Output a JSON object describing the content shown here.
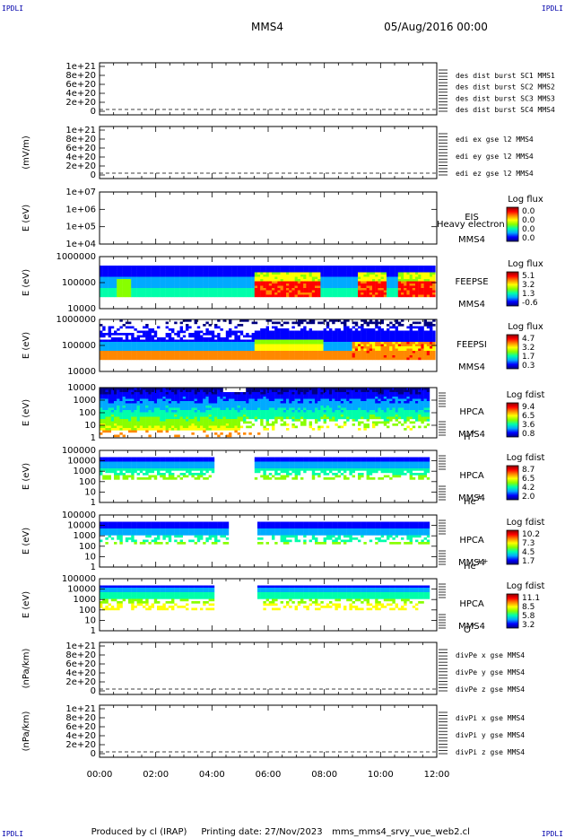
{
  "header": {
    "logo_left": "IPDLI",
    "logo_right": "IPDLI",
    "spacecraft": "MMS4",
    "datetime": "05/Aug/2016 00:00"
  },
  "footer": {
    "produced_by": "Produced by cl (IRAP)",
    "printing_date": "Printing date: 27/Nov/2023",
    "script": "mms_mms4_srvy_vue_web2.cl",
    "logo_left": "IPDLI",
    "logo_right": "IPDLI"
  },
  "colors": {
    "red": "#dd0000",
    "green": "#22bb00",
    "blue": "#0000cc",
    "magenta": "#cc00cc"
  },
  "colorbar_gradient": [
    "#000080",
    "#0000ff",
    "#00aaff",
    "#00ffaa",
    "#88ff00",
    "#ffff00",
    "#ff8800",
    "#ff0000",
    "#880000"
  ],
  "chart_data": {
    "type": "heatmap",
    "x_axis": {
      "ticks": [
        "00:00",
        "02:00",
        "04:00",
        "06:00",
        "08:00",
        "10:00",
        "12:00"
      ],
      "range_hours": [
        0,
        12
      ]
    },
    "panels": [
      {
        "kind": "line",
        "ylabel": "",
        "yticks": [
          "1e+21",
          "8e+20",
          "6e+20",
          "4e+20",
          "2e+20",
          "0"
        ],
        "legend": [
          {
            "text": "des dist burst SC1 MMS1",
            "color": "#0000cc"
          },
          {
            "text": "des dist burst SC2 MMS2",
            "color": "#cc00cc"
          },
          {
            "text": "des dist burst SC3 MMS3",
            "color": "#dd0000"
          },
          {
            "text": "des dist burst SC4 MMS4",
            "color": "#22bb00"
          }
        ]
      },
      {
        "kind": "line",
        "ylabel": "(mV/m)",
        "yticks": [
          "1e+21",
          "8e+20",
          "6e+20",
          "4e+20",
          "2e+20",
          "0"
        ],
        "legend": [
          {
            "text": "edi ex gse l2 MMS4",
            "color": "#dd0000"
          },
          {
            "text": "edi ey gse l2 MMS4",
            "color": "#22bb00"
          },
          {
            "text": "edi ez gse l2 MMS4",
            "color": "#0000cc"
          }
        ]
      },
      {
        "kind": "spec",
        "ylabel": "E (eV)",
        "yticks": [
          "1e+07",
          "1e+06",
          "1e+05",
          "1e+04"
        ],
        "instrument": "EIS",
        "instrument_extra": "Heavy electron to",
        "sc": "MMS4",
        "species": "",
        "cb_title": "Log flux",
        "cb_ticks": [
          "0.0",
          "0.0",
          "0.0",
          "0.0"
        ],
        "empty": true
      },
      {
        "kind": "spec",
        "ylabel": "E (eV)",
        "yticks": [
          "1000000",
          "100000",
          "10000"
        ],
        "instrument": "FEEPSE",
        "sc": "MMS4",
        "species": "",
        "cb_title": "Log flux",
        "cb_ticks": [
          "5.1",
          "3.2",
          "1.3",
          "-0.6"
        ]
      },
      {
        "kind": "spec",
        "ylabel": "E (eV)",
        "yticks": [
          "1000000",
          "100000",
          "10000"
        ],
        "instrument": "FEEPSI",
        "sc": "MMS4",
        "species": "",
        "cb_title": "Log flux",
        "cb_ticks": [
          "4.7",
          "3.2",
          "1.7",
          "0.3"
        ]
      },
      {
        "kind": "spec",
        "ylabel": "E (eV)",
        "yticks": [
          "10000",
          "1000",
          "100",
          "10",
          "1"
        ],
        "instrument": "HPCA",
        "sc": "MMS4",
        "species": "H",
        "species_sup": "+",
        "cb_title": "Log fdist",
        "cb_ticks": [
          "9.4",
          "6.5",
          "3.6",
          "0.8"
        ]
      },
      {
        "kind": "spec",
        "ylabel": "E (eV)",
        "yticks": [
          "100000",
          "10000",
          "1000",
          "100",
          "10",
          "1"
        ],
        "instrument": "HPCA",
        "sc": "MMS4",
        "species": "He",
        "species_sup": "+",
        "cb_title": "Log fdist",
        "cb_ticks": [
          "8.7",
          "6.5",
          "4.2",
          "2.0"
        ]
      },
      {
        "kind": "spec",
        "ylabel": "E (eV)",
        "yticks": [
          "100000",
          "10000",
          "1000",
          "100",
          "10",
          "1"
        ],
        "instrument": "HPCA",
        "sc": "MMS4",
        "species": "He",
        "species_sup": "++",
        "cb_title": "Log fdist",
        "cb_ticks": [
          "10.2",
          "7.3",
          "4.5",
          "1.7"
        ]
      },
      {
        "kind": "spec",
        "ylabel": "E (eV)",
        "yticks": [
          "100000",
          "10000",
          "1000",
          "100",
          "10",
          "1"
        ],
        "instrument": "HPCA",
        "sc": "MMS4",
        "species": "O",
        "species_sup": "+",
        "cb_title": "Log fdist",
        "cb_ticks": [
          "11.1",
          "8.5",
          "5.8",
          "3.2"
        ]
      },
      {
        "kind": "line",
        "ylabel": "(nPa/km)",
        "yticks": [
          "1e+21",
          "8e+20",
          "6e+20",
          "4e+20",
          "2e+20",
          "0"
        ],
        "legend": [
          {
            "text": "divPe x gse MMS4",
            "color": "#dd0000"
          },
          {
            "text": "divPe y gse MMS4",
            "color": "#22bb00"
          },
          {
            "text": "divPe z gse MMS4",
            "color": "#0000cc"
          }
        ]
      },
      {
        "kind": "line",
        "ylabel": "(nPa/km)",
        "yticks": [
          "1e+21",
          "8e+20",
          "6e+20",
          "4e+20",
          "2e+20",
          "0"
        ],
        "legend": [
          {
            "text": "divPi x gse MMS4",
            "color": "#dd0000"
          },
          {
            "text": "divPi y gse MMS4",
            "color": "#22bb00"
          },
          {
            "text": "divPi z gse MMS4",
            "color": "#0000cc"
          }
        ]
      }
    ]
  }
}
